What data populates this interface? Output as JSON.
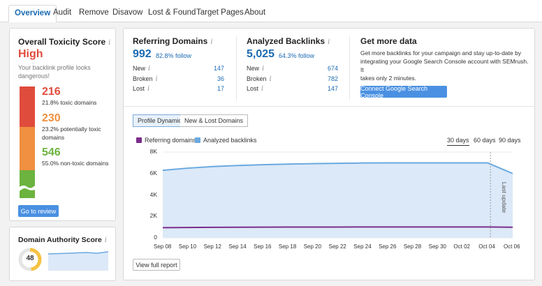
{
  "tabs": [
    "Overview",
    "Audit",
    "Remove",
    "Disavow",
    "Lost & Found",
    "Target Pages",
    "About"
  ],
  "toxicity": {
    "title": "Overall Toxicity Score",
    "info_icon": "i",
    "level": "High",
    "description_line1": "Your backlink profile looks",
    "description_line2": "dangerous!",
    "segments": [
      {
        "value": "216",
        "pct_label": "21.8% toxic domains",
        "color": "#e04c3c"
      },
      {
        "value": "230",
        "pct_label_line1": "23.2% potentially toxic",
        "pct_label_line2": "domains",
        "color": "#f09040"
      },
      {
        "value": "546",
        "pct_label": "55.0% non-toxic domains",
        "color": "#6cb33f"
      }
    ],
    "button": "Go to review"
  },
  "authority": {
    "title": "Domain Authority Score",
    "info_icon": "i",
    "score": "48",
    "ring_fill": 0.48,
    "ring_color": "#f5c242"
  },
  "referring": {
    "title": "Referring Domains",
    "info_icon": "i",
    "total": "992",
    "follow": "82.8% follow",
    "rows": [
      {
        "label": "New",
        "info": "i",
        "value": "147"
      },
      {
        "label": "Broken",
        "info": "i",
        "value": "36"
      },
      {
        "label": "Lost",
        "info": "i",
        "value": "17"
      }
    ]
  },
  "backlinks": {
    "title": "Analyzed Backlinks",
    "info_icon": "i",
    "total": "5,025",
    "follow": "64.3% follow",
    "rows": [
      {
        "label": "New",
        "info": "i",
        "value": "674"
      },
      {
        "label": "Broken",
        "info": "i",
        "value": "782"
      },
      {
        "label": "Lost",
        "info": "i",
        "value": "147"
      }
    ]
  },
  "getmore": {
    "title": "Get more data",
    "line1": "Get more backlinks for your campaign and stay up-to-date by",
    "line2": "integrating your Google Search Console account with SEMrush. It",
    "line3": "takes only 2 minutes.",
    "button": "Connect Google Search Console"
  },
  "chart_controls": {
    "seg_active": "Profile Dynamic",
    "seg_other": "New & Lost Domains",
    "legend_ref": "Referring domains",
    "legend_back": "Analyzed backlinks",
    "range_30": "30 days",
    "range_60": "60 days",
    "range_90": "90 days",
    "last_update": "Last update",
    "view_full": "View full report"
  },
  "colors": {
    "referring": "#7b2d8b",
    "backlinks": "#6aa9e0",
    "backlinks_fill": "#dce9f8"
  },
  "chart_data": {
    "type": "area",
    "ylim": [
      0,
      8000
    ],
    "yticks": [
      "0",
      "2K",
      "4K",
      "6K",
      "8K"
    ],
    "ytick_values": [
      0,
      2000,
      4000,
      6000,
      8000
    ],
    "xticks": [
      "Sep 08",
      "Sep 10",
      "Sep 12",
      "Sep 14",
      "Sep 16",
      "Sep 18",
      "Sep 20",
      "Sep 22",
      "Sep 24",
      "Sep 26",
      "Sep 28",
      "Sep 30",
      "Oct 02",
      "Oct 04",
      "Oct 06"
    ],
    "series": [
      {
        "name": "Analyzed backlinks",
        "values": [
          6300,
          6500,
          6650,
          6750,
          6820,
          6880,
          6920,
          6950,
          6980,
          6990,
          6990,
          6990,
          6990,
          6990,
          6000
        ]
      },
      {
        "name": "Referring domains",
        "values": [
          950,
          970,
          985,
          995,
          1000,
          1005,
          1010,
          1010,
          1015,
          1015,
          1015,
          1015,
          1015,
          1015,
          990
        ]
      }
    ]
  }
}
